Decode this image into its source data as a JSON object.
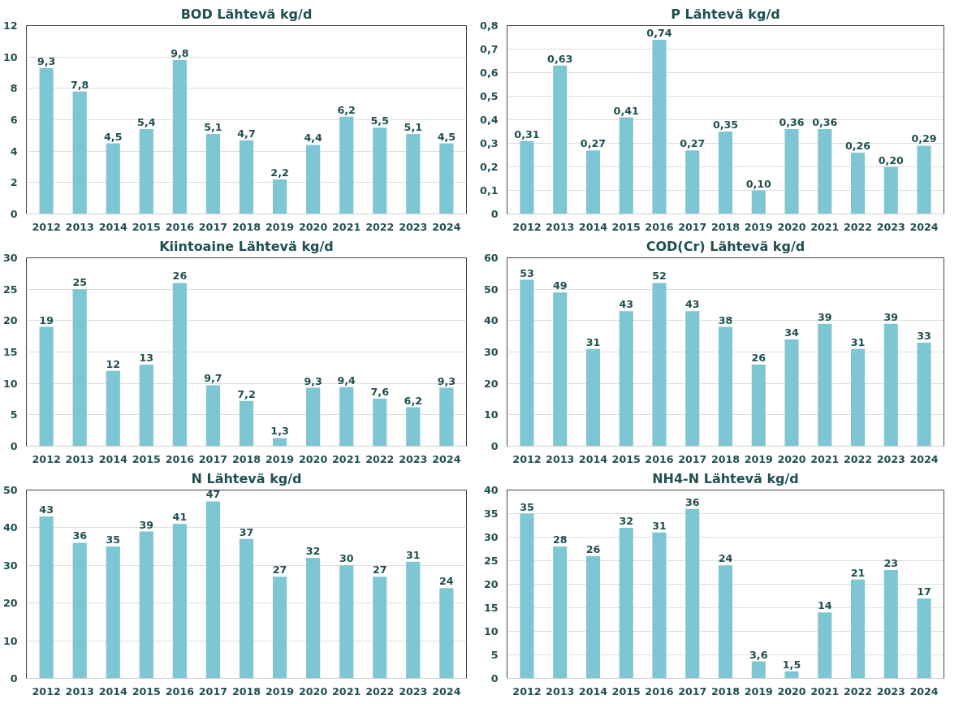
{
  "chart_data": [
    {
      "type": "bar",
      "title": "BOD Lähtevä kg/d",
      "categories": [
        "2012",
        "2013",
        "2014",
        "2015",
        "2016",
        "2017",
        "2018",
        "2019",
        "2020",
        "2021",
        "2022",
        "2023",
        "2024"
      ],
      "values": [
        9.3,
        7.8,
        4.5,
        5.4,
        9.8,
        5.1,
        4.7,
        2.2,
        4.4,
        6.2,
        5.5,
        5.1,
        4.5
      ],
      "value_labels": [
        "9,3",
        "7,8",
        "4,5",
        "5,4",
        "9,8",
        "5,1",
        "4,7",
        "2,2",
        "4,4",
        "6,2",
        "5,5",
        "5,1",
        "4,5"
      ],
      "color": "#7fc6d4",
      "ylim": [
        0,
        12
      ],
      "yticks": [
        0,
        2,
        4,
        6,
        8,
        10,
        12
      ],
      "grid": "y"
    },
    {
      "type": "bar",
      "title": "P Lähtevä kg/d",
      "categories": [
        "2012",
        "2013",
        "2014",
        "2015",
        "2016",
        "2017",
        "2018",
        "2019",
        "2020",
        "2021",
        "2022",
        "2023",
        "2024"
      ],
      "values": [
        0.31,
        0.63,
        0.27,
        0.41,
        0.74,
        0.27,
        0.35,
        0.1,
        0.36,
        0.36,
        0.26,
        0.2,
        0.29
      ],
      "value_labels": [
        "0,31",
        "0,63",
        "0,27",
        "0,41",
        "0,74",
        "0,27",
        "0,35",
        "0,10",
        "0,36",
        "0,36",
        "0,26",
        "0,20",
        "0,29"
      ],
      "color": "#7fc6d4",
      "ylim": [
        0,
        0.8
      ],
      "yticks": [
        0,
        {
          "value": 0.1,
          "label": "0,1"
        },
        {
          "value": 0.2,
          "label": "0,2"
        },
        {
          "value": 0.3,
          "label": "0,3"
        },
        {
          "value": 0.4,
          "label": "0,4"
        },
        {
          "value": 0.5,
          "label": "0,5"
        },
        {
          "value": 0.6,
          "label": "0,6"
        },
        {
          "value": 0.7,
          "label": "0,7"
        },
        {
          "value": 0.8,
          "label": "0,8"
        }
      ],
      "grid": "y"
    },
    {
      "type": "bar",
      "title": "Kiintoaine Lähtevä kg/d",
      "categories": [
        "2012",
        "2013",
        "2014",
        "2015",
        "2016",
        "2017",
        "2018",
        "2019",
        "2020",
        "2021",
        "2022",
        "2023",
        "2024"
      ],
      "values": [
        19,
        25,
        12,
        13,
        26,
        9.7,
        7.2,
        1.3,
        9.3,
        9.4,
        7.6,
        6.2,
        9.3
      ],
      "value_labels": [
        "19",
        "25",
        "12",
        "13",
        "26",
        "9,7",
        "7,2",
        "1,3",
        "9,3",
        "9,4",
        "7,6",
        "6,2",
        "9,3"
      ],
      "color": "#7fc6d4",
      "ylim": [
        0,
        30
      ],
      "yticks": [
        0,
        5,
        10,
        15,
        20,
        25,
        30
      ],
      "grid": "y"
    },
    {
      "type": "bar",
      "title": "COD(Cr) Lähtevä kg/d",
      "categories": [
        "2012",
        "2013",
        "2014",
        "2015",
        "2016",
        "2017",
        "2018",
        "2019",
        "2020",
        "2021",
        "2022",
        "2023",
        "2024"
      ],
      "values": [
        53,
        49,
        31,
        43,
        52,
        43,
        38,
        26,
        34,
        39,
        31,
        39,
        33
      ],
      "value_labels": [
        "53",
        "49",
        "31",
        "43",
        "52",
        "43",
        "38",
        "26",
        "34",
        "39",
        "31",
        "39",
        "33"
      ],
      "color": "#7fc6d4",
      "ylim": [
        0,
        60
      ],
      "yticks": [
        0,
        10,
        20,
        30,
        40,
        50,
        60
      ],
      "grid": "y"
    },
    {
      "type": "bar",
      "title": "N Lähtevä kg/d",
      "categories": [
        "2012",
        "2013",
        "2014",
        "2015",
        "2016",
        "2017",
        "2018",
        "2019",
        "2020",
        "2021",
        "2022",
        "2023",
        "2024"
      ],
      "values": [
        43,
        36,
        35,
        39,
        41,
        47,
        37,
        27,
        32,
        30,
        27,
        31,
        24
      ],
      "value_labels": [
        "43",
        "36",
        "35",
        "39",
        "41",
        "47",
        "37",
        "27",
        "32",
        "30",
        "27",
        "31",
        "24"
      ],
      "color": "#7fc6d4",
      "ylim": [
        0,
        50
      ],
      "yticks": [
        0,
        10,
        20,
        30,
        40,
        50
      ],
      "grid": "y"
    },
    {
      "type": "bar",
      "title": "NH4-N Lähtevä kg/d",
      "categories": [
        "2012",
        "2013",
        "2014",
        "2015",
        "2016",
        "2017",
        "2018",
        "2019",
        "2020",
        "2021",
        "2022",
        "2023",
        "2024"
      ],
      "values": [
        35,
        28,
        26,
        32,
        31,
        36,
        24,
        3.6,
        1.5,
        14,
        21,
        23,
        17
      ],
      "value_labels": [
        "35",
        "28",
        "26",
        "32",
        "31",
        "36",
        "24",
        "3,6",
        "1,5",
        "14",
        "21",
        "23",
        "17"
      ],
      "color": "#7fc6d4",
      "ylim": [
        0,
        40
      ],
      "yticks": [
        0,
        5,
        10,
        15,
        20,
        25,
        30,
        35,
        40
      ],
      "grid": "y"
    }
  ]
}
